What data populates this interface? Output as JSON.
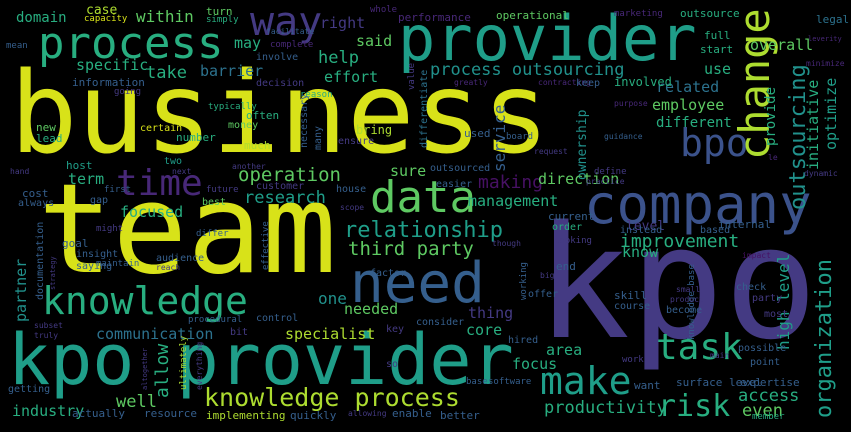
{
  "words": {
    "business": "business",
    "team": "team",
    "kpo": "kpo",
    "kpo_provider": "kpo provider",
    "provider": "provider",
    "company": "company",
    "need": "need",
    "process": "process",
    "knowledge": "knowledge",
    "data": "data",
    "way": "way",
    "bpo": "bpo",
    "change": "change",
    "time": "time",
    "make": "make",
    "task": "task",
    "knowledge_process": "knowledge process",
    "risk": "risk",
    "organization": "organization",
    "outsourcing": "outsourcing",
    "relationship": "relationship",
    "process_outsourcing": "process outsourcing",
    "third_party": "third party",
    "operation": "operation",
    "research": "research",
    "making": "making",
    "service": "service",
    "improvement": "improvement",
    "high_level": "high level",
    "initiative": "initiative",
    "optimize": "optimize",
    "productivity": "productivity",
    "access": "access",
    "even": "even",
    "specialist": "specialist",
    "communication": "communication",
    "one": "one",
    "allow": "allow",
    "well": "well",
    "industry": "industry",
    "partner": "partner",
    "domain": "domain",
    "within": "within",
    "specific": "specific",
    "take": "take",
    "barrier": "barrier",
    "help": "help",
    "effort": "effort",
    "said": "said",
    "right": "right",
    "may": "may",
    "related": "related",
    "employee": "employee",
    "different": "different",
    "provide": "provide",
    "ownership": "ownership",
    "overall": "overall",
    "use": "use",
    "direction": "direction",
    "sure": "sure",
    "management": "management",
    "term": "term",
    "focused": "focused",
    "needed": "needed",
    "thing": "thing",
    "core": "core",
    "area": "area",
    "focus": "focus",
    "know": "know",
    "level": "level",
    "case": "case",
    "capacity": "capacity",
    "turn": "turn",
    "simply": "simply",
    "whole": "whole",
    "performance": "performance",
    "operational": "operational",
    "marketing": "marketing",
    "outsource": "outsource",
    "legal": "legal",
    "full": "full",
    "start": "start",
    "minimize": "minimize",
    "mean": "mean",
    "information": "information",
    "going": "going",
    "decision": "decision",
    "reason": "reason",
    "involve": "involve",
    "complete": "complete",
    "facilitate": "facilitate",
    "value": "value",
    "greatly": "greatly",
    "contracting": "contracting",
    "keep": "keep",
    "involved": "involved",
    "purpose": "purpose",
    "typically": "typically",
    "often": "often",
    "money": "money",
    "necessary": "necessary",
    "many": "many",
    "bring": "bring",
    "ensure": "ensure",
    "differentiate": "differentiate",
    "used": "used",
    "board": "board",
    "guidance": "guidance",
    "new": "new",
    "lead": "lead",
    "certain": "certain",
    "number": "number",
    "much": "much",
    "host": "host",
    "two": "two",
    "first": "first",
    "next": "next",
    "another": "another",
    "customer": "customer",
    "house": "house",
    "outsourced": "outsourced",
    "easier": "easier",
    "request": "request",
    "define": "define",
    "practice": "practice",
    "dynamic": "dynamic",
    "hand": "hand",
    "cost": "cost",
    "always": "always",
    "gap": "gap",
    "future": "future",
    "best": "best",
    "scope": "scope",
    "current": "current",
    "internal": "internal",
    "order": "order",
    "instead": "instead",
    "based": "based",
    "looking": "looking",
    "though": "though",
    "goal": "goal",
    "might": "might",
    "insight": "insight",
    "saying": "saying",
    "documentation": "documentation",
    "maintain": "maintain",
    "strategy": "strategy",
    "audience": "audience",
    "reach": "reach",
    "effective": "effective",
    "differ": "differ",
    "factor": "factor",
    "end": "end",
    "working": "working",
    "offer": "offer",
    "big": "big",
    "skill": "skill",
    "check": "check",
    "party": "party",
    "knowledge_base": "knowledge base",
    "small": "small",
    "product": "product",
    "impact": "impact",
    "become": "become",
    "course": "course",
    "most": "most",
    "procedural": "procedural",
    "control": "control",
    "key": "key",
    "consider": "consider",
    "hired": "hired",
    "bit": "bit",
    "subset": "subset",
    "truly": "truly",
    "getting": "getting",
    "altogether": "altogether",
    "ultimately": "ultimately",
    "everything": "everything",
    "so": "so",
    "work": "work",
    "main": "main",
    "possible": "possible",
    "point": "point",
    "want": "want",
    "surface_level": "surface level",
    "expertise": "expertise",
    "member": "member",
    "actually": "actually",
    "resource": "resource",
    "implementing": "implementing",
    "quickly": "quickly",
    "allowing": "allowing",
    "enable": "enable",
    "better": "better",
    "base": "base",
    "software": "software",
    "le": "le",
    "leverity": "leverity"
  }
}
